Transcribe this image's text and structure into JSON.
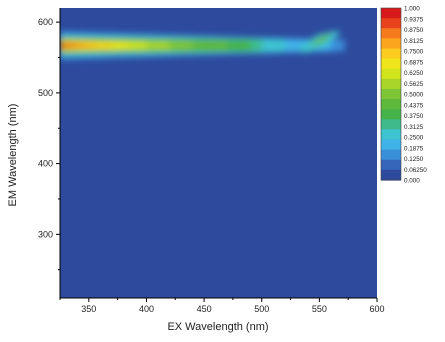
{
  "chart_data": {
    "type": "heatmap",
    "title": "",
    "xlabel": "EX Wavelength (nm)",
    "ylabel": "EM Wavelength (nm)",
    "xlim": [
      325,
      600
    ],
    "ylim": [
      210,
      620
    ],
    "x_ticks": [
      350,
      400,
      450,
      500,
      550,
      600
    ],
    "y_ticks": [
      300,
      400,
      500,
      600
    ],
    "colorbar": {
      "min": 0.0,
      "max": 1.0,
      "labels": [
        "1.000",
        "0.9375",
        "0.8750",
        "0.8125",
        "0.7500",
        "0.6875",
        "0.6250",
        "0.5625",
        "0.5000",
        "0.4375",
        "0.3750",
        "0.3125",
        "0.2500",
        "0.1875",
        "0.1250",
        "0.06250",
        "0.000"
      ],
      "colors": [
        "#d7191c",
        "#e8421d",
        "#f57a1d",
        "#fba51f",
        "#fbcb1f",
        "#f0e41c",
        "#d2e51c",
        "#a9d52a",
        "#7dc437",
        "#5db83c",
        "#45b34a",
        "#3dbb8a",
        "#3ec3d0",
        "#3fb3e8",
        "#3a8fd9",
        "#3565b8",
        "#2d4a9d"
      ]
    },
    "background_value": 0.0,
    "peak": {
      "ex": 330,
      "em": 568,
      "intensity": 1.0
    },
    "grid": false
  }
}
